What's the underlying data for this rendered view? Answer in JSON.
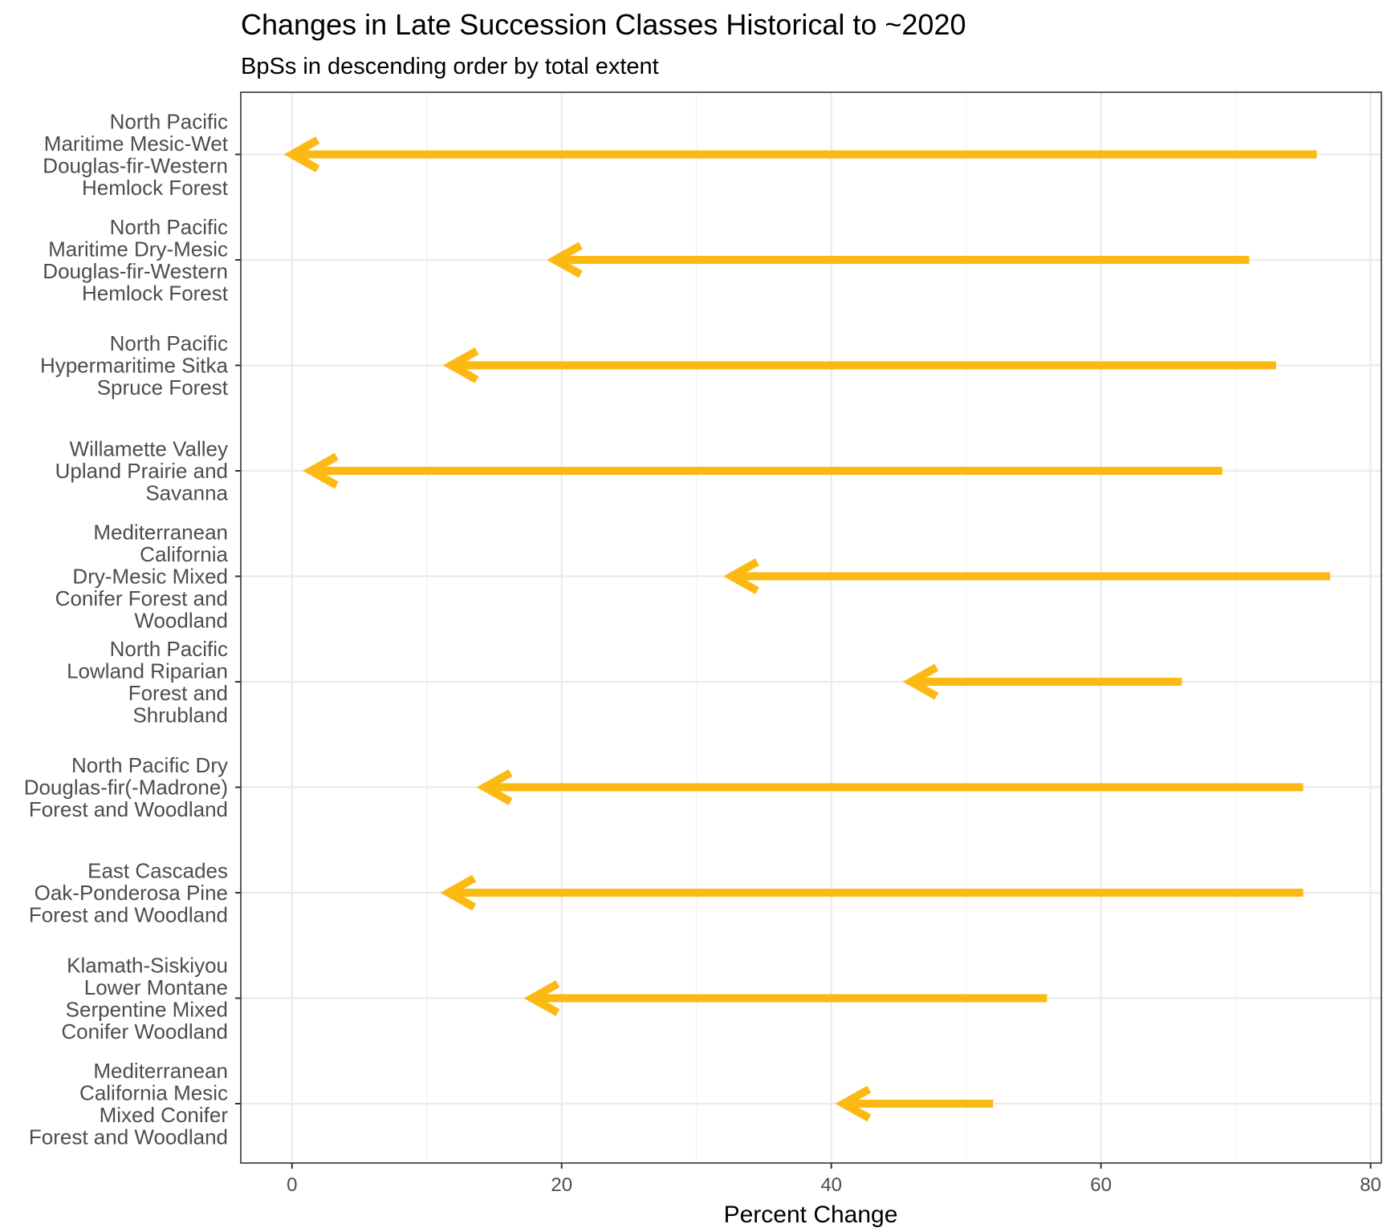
{
  "chart_data": {
    "type": "arrow",
    "title": "Changes in Late Succession Classes Historical to ~2020",
    "subtitle": "BpSs in descending order by total extent",
    "xlabel": "Percent Change",
    "ylabel": "",
    "xlim": [
      -3.8,
      80.8
    ],
    "xticks": [
      "0",
      "20",
      "40",
      "60",
      "80"
    ],
    "grid": true,
    "arrow_color": "#FDB913",
    "categories": [
      [
        "North Pacific",
        "Maritime Mesic-Wet",
        "Douglas-fir-Western",
        "Hemlock Forest"
      ],
      [
        "North Pacific",
        "Maritime Dry-Mesic",
        "Douglas-fir-Western",
        "Hemlock Forest"
      ],
      [
        "North Pacific",
        "Hypermaritime Sitka",
        "Spruce Forest"
      ],
      [
        "Willamette Valley",
        "Upland Prairie and",
        "Savanna"
      ],
      [
        "Mediterranean",
        "California",
        "Dry-Mesic Mixed",
        "Conifer Forest and",
        "Woodland"
      ],
      [
        "North Pacific",
        "Lowland Riparian",
        "Forest and",
        "Shrubland"
      ],
      [
        "North Pacific Dry",
        "Douglas-fir(-Madrone)",
        "Forest and Woodland"
      ],
      [
        "East Cascades",
        "Oak-Ponderosa Pine",
        "Forest and Woodland"
      ],
      [
        "Klamath-Siskiyou",
        "Lower Montane",
        "Serpentine Mixed",
        "Conifer Woodland"
      ],
      [
        "Mediterranean",
        "California Mesic",
        "Mixed Conifer",
        "Forest and Woodland"
      ]
    ],
    "series": [
      {
        "start": 76,
        "end": 0
      },
      {
        "start": 71,
        "end": 19.5
      },
      {
        "start": 73,
        "end": 11.8
      },
      {
        "start": 69,
        "end": 1.4
      },
      {
        "start": 77,
        "end": 32.6
      },
      {
        "start": 66,
        "end": 45.9
      },
      {
        "start": 75,
        "end": 14.3
      },
      {
        "start": 75,
        "end": 11.6
      },
      {
        "start": 56,
        "end": 17.8
      },
      {
        "start": 52,
        "end": 40.9
      }
    ]
  }
}
